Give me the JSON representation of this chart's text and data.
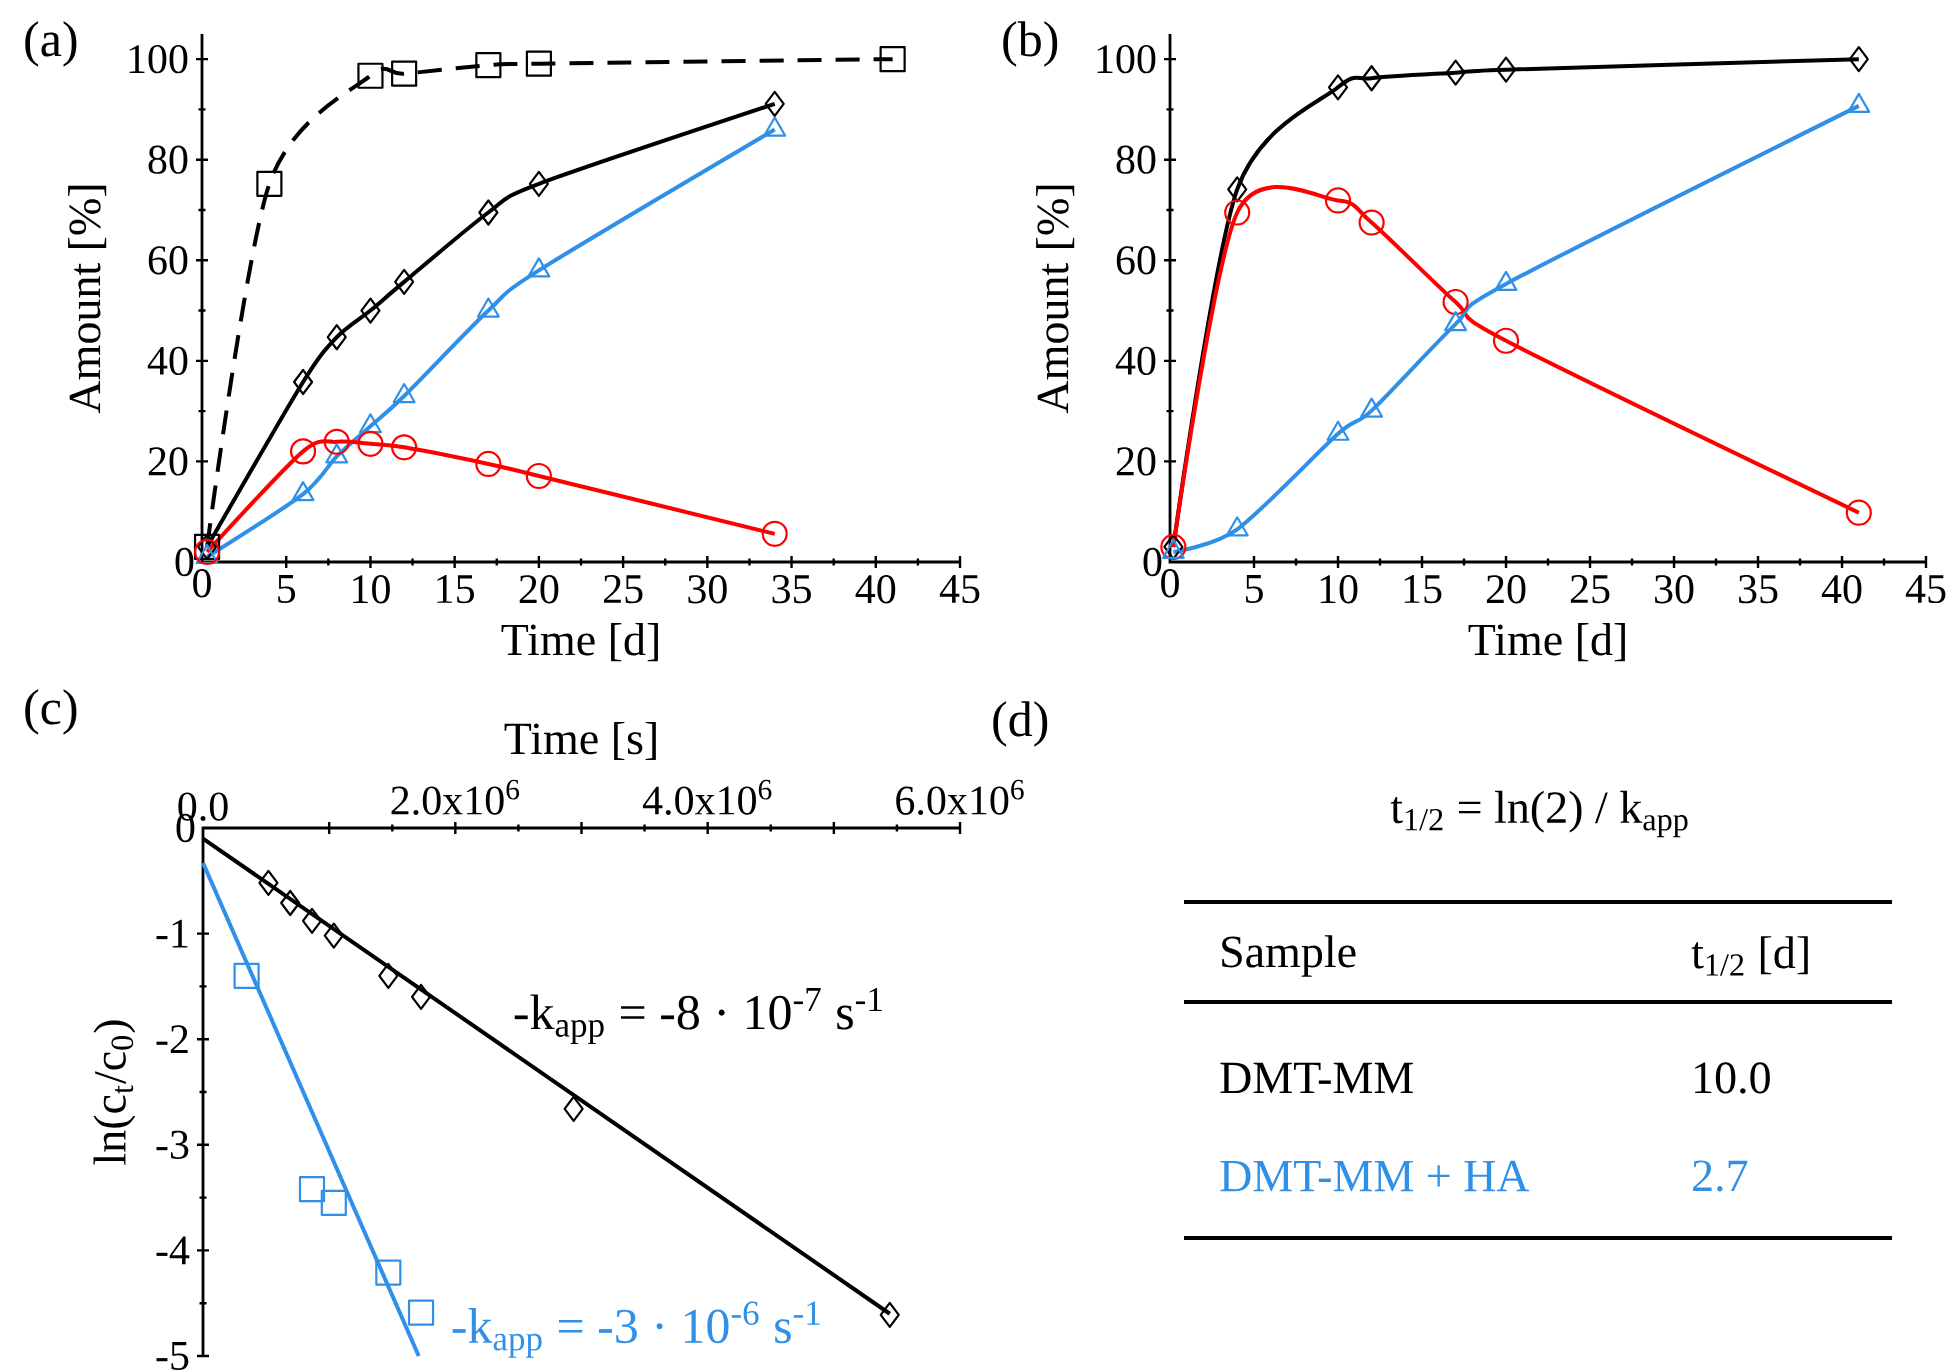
{
  "chart_data": [
    {
      "type": "line",
      "title": "(a)",
      "xlabel": "Time [d]",
      "ylabel": "Amount [%]",
      "xlim": [
        0,
        45
      ],
      "ylim": [
        0,
        105
      ],
      "xticks": [
        0,
        5,
        10,
        15,
        20,
        25,
        30,
        35,
        40,
        45
      ],
      "yticks": [
        0,
        20,
        40,
        60,
        80,
        100
      ],
      "series": [
        {
          "color": "#000000",
          "marker": "square",
          "line_style": "dashed",
          "x": [
            0.3,
            4,
            10,
            12,
            17,
            20,
            41
          ],
          "values": [
            3,
            75.2,
            96.7,
            97.1,
            98.8,
            99.1,
            100
          ]
        },
        {
          "color": "#000000",
          "marker": "diamond",
          "line_style": "solid",
          "x": [
            0.3,
            6,
            8,
            10,
            12,
            17,
            20,
            34
          ],
          "values": [
            3,
            35.8,
            44.7,
            50,
            55.7,
            69.5,
            75.2,
            91.1
          ]
        },
        {
          "color": "#3090e8",
          "marker": "triangle",
          "line_style": "solid",
          "x": [
            0.3,
            6,
            8,
            10,
            12,
            17,
            20,
            34
          ],
          "values": [
            1,
            13.5,
            21,
            27,
            33,
            50,
            58,
            86
          ]
        },
        {
          "color": "#ff0000",
          "marker": "circle",
          "line_style": "solid",
          "x": [
            0.3,
            6,
            8,
            10,
            12,
            17,
            20,
            34
          ],
          "values": [
            2,
            22,
            23.9,
            23.5,
            22.8,
            19.5,
            17.1,
            5.6
          ]
        }
      ]
    },
    {
      "type": "line",
      "title": "(b)",
      "xlabel": "Time [d]",
      "ylabel": "Amount [%]",
      "xlim": [
        0,
        45
      ],
      "ylim": [
        0,
        105
      ],
      "xticks": [
        0,
        5,
        10,
        15,
        20,
        25,
        30,
        35,
        40,
        45
      ],
      "yticks": [
        0,
        20,
        40,
        60,
        80,
        100
      ],
      "series": [
        {
          "color": "#000000",
          "marker": "diamond",
          "line_style": "solid",
          "x": [
            0.2,
            4,
            10,
            12,
            17,
            20,
            41
          ],
          "values": [
            3,
            74.1,
            94.4,
            96.2,
            97.3,
            97.9,
            100
          ]
        },
        {
          "color": "#ff0000",
          "marker": "circle",
          "line_style": "solid",
          "x": [
            0.2,
            4,
            10,
            12,
            17,
            20,
            41
          ],
          "values": [
            3,
            69.5,
            71.9,
            67.5,
            51.7,
            44.0,
            9.8
          ]
        },
        {
          "color": "#3090e8",
          "marker": "triangle",
          "line_style": "solid",
          "x": [
            0.2,
            4,
            10,
            12,
            17,
            20,
            41
          ],
          "values": [
            2,
            6.5,
            25.5,
            30.1,
            47.3,
            55.3,
            90.7
          ]
        }
      ]
    },
    {
      "type": "scatter",
      "title": "(c)",
      "xlabel": "Time [s]",
      "ylabel": "ln(c$_{t}$/c$_{0}$)",
      "xlim": [
        0,
        6000000
      ],
      "ylim": [
        -5,
        0
      ],
      "xticks": [
        {
          "value": 0,
          "label": "0.0"
        },
        {
          "value": 1000000,
          "label": null
        },
        {
          "value": 2000000,
          "label": "2.0x10$^{6}$"
        },
        {
          "value": 3000000,
          "label": null
        },
        {
          "value": 4000000,
          "label": "4.0x10$^{6}$"
        },
        {
          "value": 5000000,
          "label": null
        },
        {
          "value": 6000000,
          "label": "6.0x10$^{6}$"
        }
      ],
      "yticks": [
        0,
        -1,
        -2,
        -3,
        -4,
        -5
      ],
      "series": [
        {
          "color": "#000000",
          "marker": "diamond",
          "x": [
            518400,
            691200,
            864000,
            1036800,
            1468800,
            1728000,
            2937600,
            5443200
          ],
          "values": [
            -0.52,
            -0.71,
            -0.88,
            -1.02,
            -1.4,
            -1.6,
            -2.66,
            -4.61
          ]
        },
        {
          "color": "#3090e8",
          "marker": "square",
          "x": [
            345600,
            864000,
            1036800,
            1468800,
            1728000
          ],
          "values": [
            -1.4,
            -3.42,
            -3.55,
            -4.21,
            -4.59
          ]
        },
        {
          "type": "line",
          "marker": "none",
          "line_style": "solid",
          "color": "#000000",
          "x": [
            0,
            5443200
          ],
          "values": [
            -0.1,
            -4.6
          ]
        },
        {
          "type": "line",
          "marker": "none",
          "line_style": "solid",
          "color": "#3090e8",
          "x": [
            0,
            1710000
          ],
          "values": [
            -0.33,
            -5
          ]
        }
      ],
      "annotations": [
        "-k$_{app}$ = -8 · 10$^{-7}$ s$^{-1}$",
        "-k$_{app}$ = -3 · 10$^{-6}$ s$^{-1}$"
      ]
    },
    {
      "type": "other",
      "title": "(d)",
      "subtitle": "t$_{1/2}$ = ln(2) / k$_{app}$",
      "categories": [
        "DMT-MM",
        "DMT-MM + HA"
      ],
      "value_labels": [
        "10.0",
        "2.7"
      ],
      "colors": [
        "#000000",
        "#3090e8"
      ],
      "annotations": [
        "Sample",
        "t$_{1/2}$ [d]"
      ]
    }
  ]
}
